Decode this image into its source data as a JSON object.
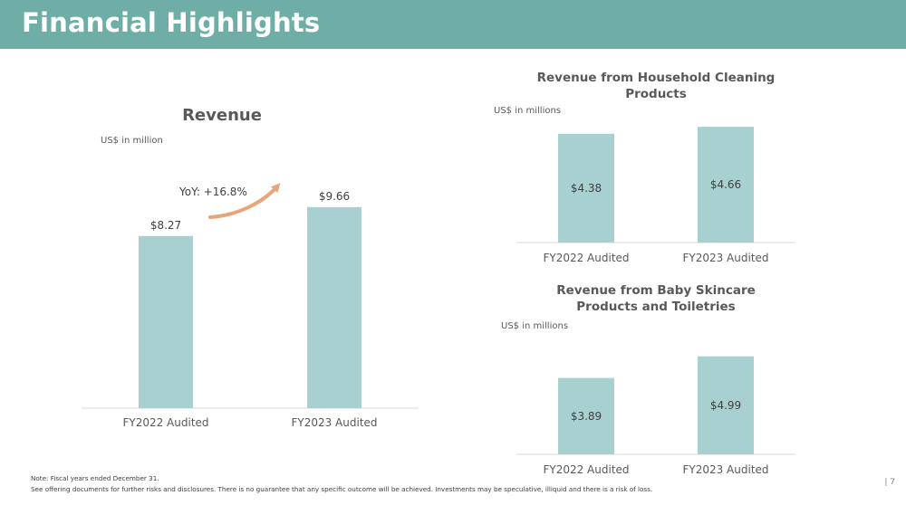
{
  "header": {
    "title": "Financial Highlights"
  },
  "charts": {
    "revenue": {
      "title": "Revenue",
      "unit": "US$ in million",
      "annotation": "YoY: +16.8%"
    },
    "household": {
      "title_line1": "Revenue from Household Cleaning",
      "title_line2": "Products",
      "unit": "US$ in millions"
    },
    "baby": {
      "title_line1": "Revenue from Baby Skincare",
      "title_line2": "Products and Toiletries",
      "unit": "US$ in millions"
    }
  },
  "chart_data": [
    {
      "type": "bar",
      "title": "Revenue",
      "ylabel": "US$ in million",
      "categories": [
        "FY2022 Audited",
        "FY2023 Audited"
      ],
      "values": [
        8.27,
        9.66
      ],
      "labels": [
        "$8.27",
        "$9.66"
      ],
      "annotation": "YoY: +16.8%",
      "ylim": [
        0,
        11
      ],
      "color": "#a9d0d0"
    },
    {
      "type": "bar",
      "title": "Revenue from Household Cleaning Products",
      "ylabel": "US$ in millions",
      "categories": [
        "FY2022 Audited",
        "FY2023 Audited"
      ],
      "values": [
        4.38,
        4.66
      ],
      "labels": [
        "$4.38",
        "$4.66"
      ],
      "ylim": [
        0,
        5.1
      ],
      "color": "#a9d0d0"
    },
    {
      "type": "bar",
      "title": "Revenue from Baby Skincare Products and Toiletries",
      "ylabel": "US$ in millions",
      "categories": [
        "FY2022 Audited",
        "FY2023 Audited"
      ],
      "values": [
        3.89,
        4.99
      ],
      "labels": [
        "$3.89",
        "$4.99"
      ],
      "ylim": [
        0,
        5.9
      ],
      "color": "#a9d0d0"
    }
  ],
  "footer": {
    "note": "Note: Fiscal years ended December 31.",
    "disclaimer": "See offering documents for further risks and disclosures. There is no guarantee that any specific outcome will be achieved. Investments may be speculative, illiquid and there is a risk of loss.",
    "page_number": "| 7"
  },
  "colors": {
    "banner": "#6fada7",
    "bar": "#a9d0d0",
    "arrow": "#e8a57a"
  }
}
